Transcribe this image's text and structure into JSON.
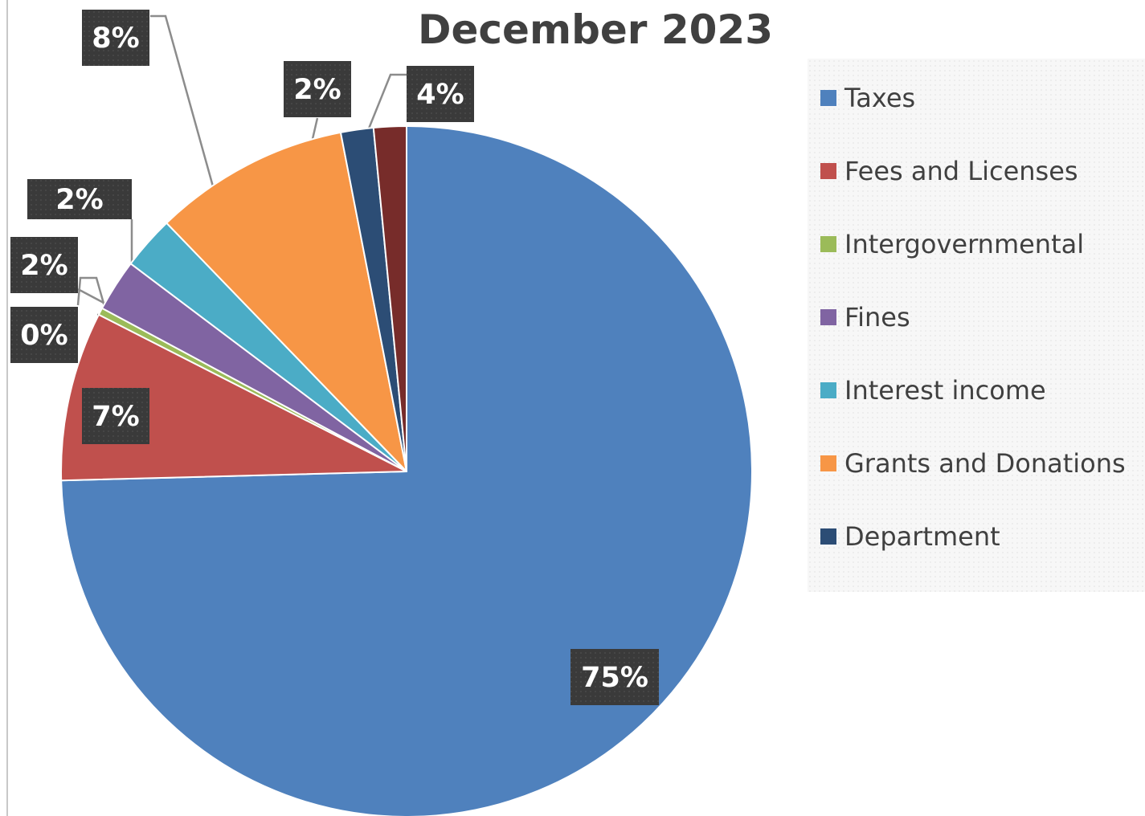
{
  "chart_data": {
    "type": "pie",
    "title": "December 2023",
    "categories": [
      "Taxes",
      "Fees and Licenses",
      "Intergovernmental",
      "Fines",
      "Interest income",
      "Grants and Donations",
      "Department",
      ""
    ],
    "values": [
      75,
      7,
      0,
      2,
      2,
      8,
      2,
      4
    ],
    "value_labels": [
      "75%",
      "7%",
      "0%",
      "2%",
      "2%",
      "8%",
      "2%",
      "4%"
    ],
    "colors": [
      "#4f81bd",
      "#c0504d",
      "#9bbb59",
      "#8064a2",
      "#4bacc6",
      "#f79646",
      "#2c4d75",
      "#772c2a"
    ],
    "legend_position": "right",
    "start_angle": "12 o'clock, clockwise"
  }
}
